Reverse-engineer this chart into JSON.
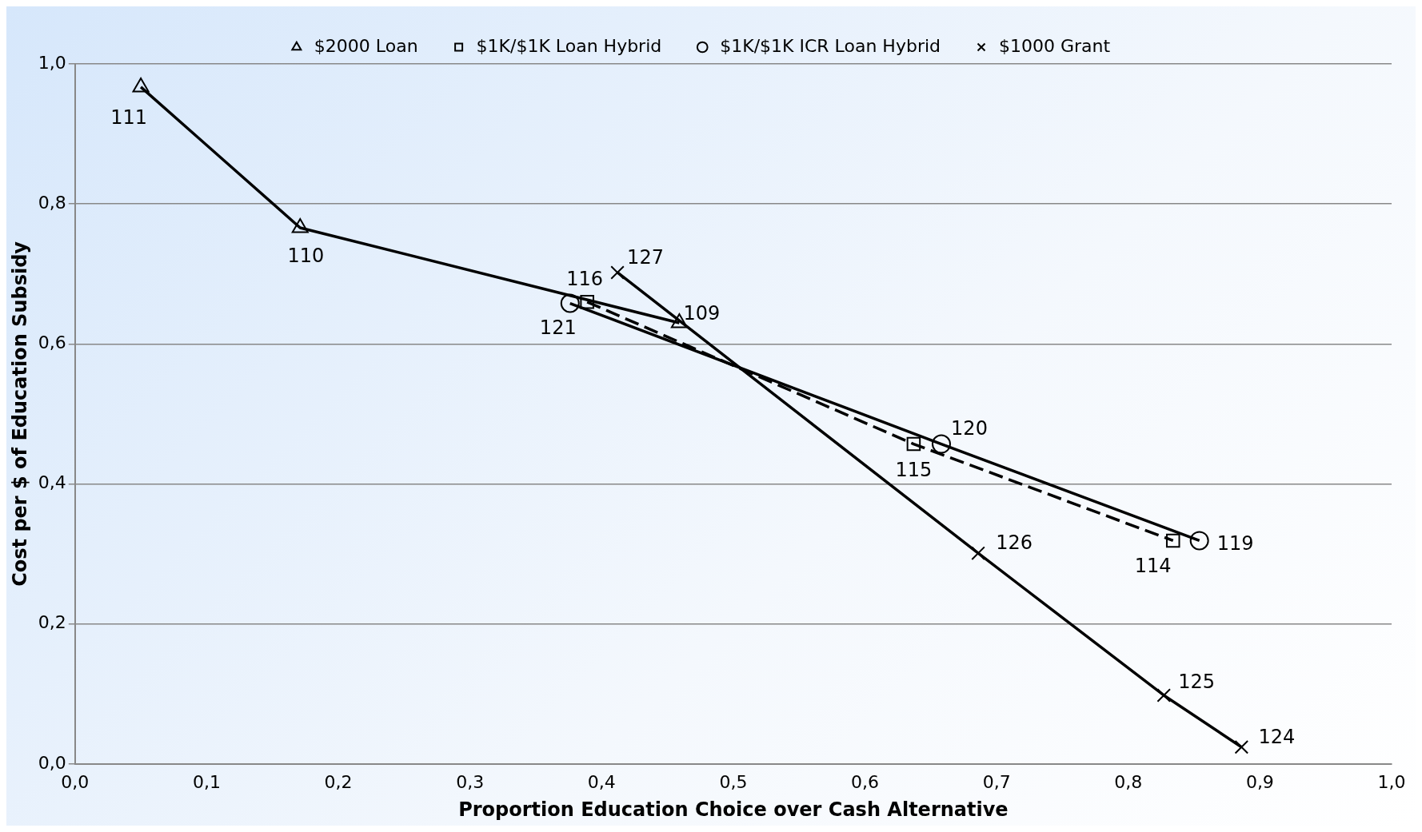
{
  "chart_data": {
    "type": "line",
    "xlabel": "Proportion Education Choice over Cash Alternative",
    "ylabel": "Cost per $ of Education Subsidy",
    "xlim": [
      0,
      1
    ],
    "ylim": [
      0,
      1
    ],
    "xticks": [
      {
        "value": 0,
        "label": "0,0"
      },
      {
        "value": 0.1,
        "label": "0,1"
      },
      {
        "value": 0.2,
        "label": "0,2"
      },
      {
        "value": 0.3,
        "label": "0,3"
      },
      {
        "value": 0.4,
        "label": "0,4"
      },
      {
        "value": 0.5,
        "label": "0,5"
      },
      {
        "value": 0.6,
        "label": "0,6"
      },
      {
        "value": 0.7,
        "label": "0,7"
      },
      {
        "value": 0.8,
        "label": "0,8"
      },
      {
        "value": 0.9,
        "label": "0,9"
      },
      {
        "value": 1,
        "label": "1,0"
      }
    ],
    "yticks": [
      {
        "value": 0,
        "label": "0,0"
      },
      {
        "value": 0.2,
        "label": "0,2"
      },
      {
        "value": 0.4,
        "label": "0,4"
      },
      {
        "value": 0.6,
        "label": "0,6"
      },
      {
        "value": 0.8,
        "label": "0,8"
      },
      {
        "value": 1,
        "label": "1,0"
      }
    ],
    "grid": "y",
    "legend": "top",
    "series": [
      {
        "name": "$2000 Loan",
        "color": "#000000",
        "marker": "triangle",
        "line_style": "solid",
        "x": [
          0.05,
          0.171,
          0.459
        ],
        "values": [
          0.967,
          0.766,
          0.63
        ]
      },
      {
        "name": "$1K/$1K Loan Hybrid",
        "color": "#000000",
        "marker": "square",
        "line_style": "dashed",
        "x": [
          0.389,
          0.637,
          0.834
        ],
        "values": [
          0.66,
          0.457,
          0.319
        ]
      },
      {
        "name": "$1K/$1K ICR Loan Hybrid",
        "color": "#000000",
        "marker": "circle",
        "line_style": "solid",
        "x": [
          0.376,
          0.658,
          0.854
        ],
        "values": [
          0.658,
          0.457,
          0.319
        ]
      },
      {
        "name": "$1000 Grant",
        "color": "#000000",
        "marker": "cross",
        "line_style": "solid",
        "x": [
          0.412,
          0.686,
          0.827,
          0.886
        ],
        "values": [
          0.702,
          0.301,
          0.098,
          0.024
        ]
      }
    ],
    "annotations": [
      {
        "text": "111",
        "x": 0.05,
        "y": 0.967
      },
      {
        "text": "110",
        "x": 0.171,
        "y": 0.766
      },
      {
        "text": "109",
        "x": 0.459,
        "y": 0.63
      },
      {
        "text": "116",
        "x": 0.389,
        "y": 0.66
      },
      {
        "text": "115",
        "x": 0.637,
        "y": 0.457
      },
      {
        "text": "114",
        "x": 0.834,
        "y": 0.319
      },
      {
        "text": "121",
        "x": 0.376,
        "y": 0.658
      },
      {
        "text": "120",
        "x": 0.658,
        "y": 0.457
      },
      {
        "text": "119",
        "x": 0.854,
        "y": 0.319
      },
      {
        "text": "127",
        "x": 0.412,
        "y": 0.702
      },
      {
        "text": "126",
        "x": 0.686,
        "y": 0.301
      },
      {
        "text": "125",
        "x": 0.827,
        "y": 0.098
      },
      {
        "text": "124",
        "x": 0.886,
        "y": 0.024
      }
    ]
  }
}
